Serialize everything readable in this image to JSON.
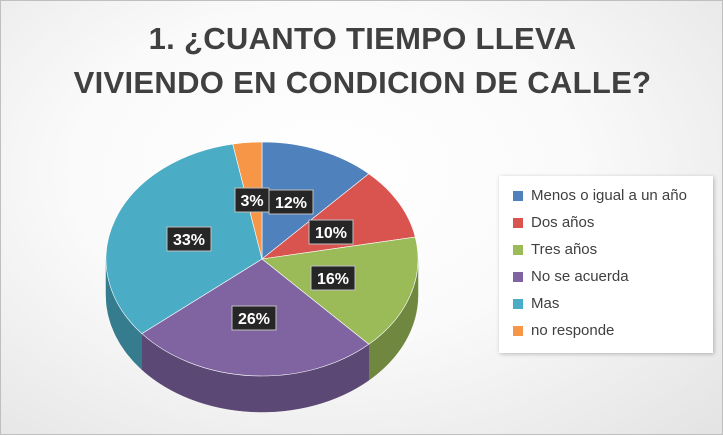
{
  "chart_data": {
    "type": "pie",
    "title_lines": [
      "1. ¿CUANTO TIEMPO LLEVA",
      "VIVIENDO EN CONDICION DE CALLE?"
    ],
    "legend_position": "right",
    "slices": [
      {
        "name": "Menos o igual a un año",
        "value": 12,
        "label": "12%",
        "color": "#4f81bd"
      },
      {
        "name": "Dos años",
        "value": 10,
        "label": "10%",
        "color": "#d9534f"
      },
      {
        "name": "Tres años",
        "value": 16,
        "label": "16%",
        "color": "#9bbb59"
      },
      {
        "name": "No se acuerda",
        "value": 26,
        "label": "26%",
        "color": "#8064a2"
      },
      {
        "name": "Mas",
        "value": 33,
        "label": "33%",
        "color": "#4bacc6"
      },
      {
        "name": "no responde",
        "value": 3,
        "label": "3%",
        "color": "#f79646"
      }
    ]
  }
}
